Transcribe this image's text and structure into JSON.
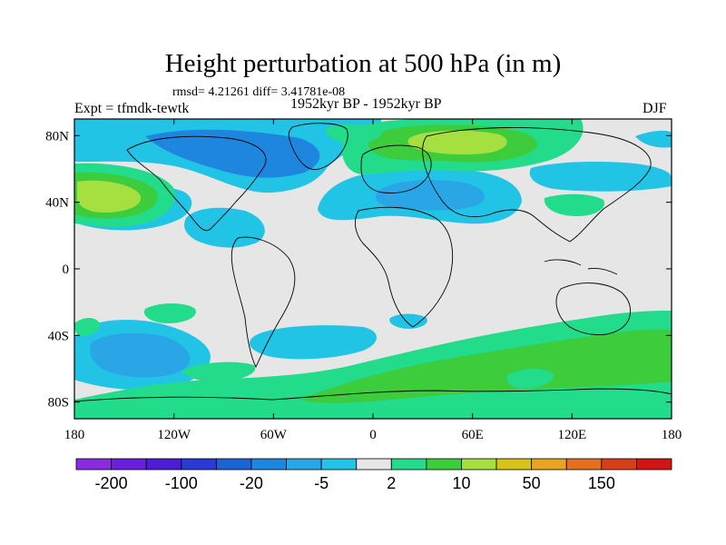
{
  "title": "Height perturbation at 500 hPa (in m)",
  "stats": "rmsd= 4.21261  diff= 3.41781e-08",
  "experiment": "Expt = tfmdk-tewtk",
  "period": "1952kyr BP - 1952kyr BP",
  "season": "DJF",
  "axes": {
    "lat_ticks": [
      "80N",
      "40N",
      "0",
      "40S",
      "80S"
    ],
    "lat_values": [
      80,
      40,
      0,
      -40,
      -80
    ],
    "lon_ticks": [
      "180",
      "120W",
      "60W",
      "0",
      "60E",
      "120E",
      "180"
    ],
    "lon_values": [
      -180,
      -120,
      -60,
      0,
      60,
      120,
      180
    ]
  },
  "colorbar": {
    "colors": [
      "#8a2be2",
      "#6a1ee0",
      "#4b1dd8",
      "#2a3ad8",
      "#1f62d8",
      "#1f86e0",
      "#2aa6e6",
      "#22c4e6",
      "#e6e6e6",
      "#22dc8c",
      "#3ccc3c",
      "#a6e040",
      "#d8c414",
      "#e6a61e",
      "#e2701e",
      "#d83e1a",
      "#d41414"
    ],
    "labels": [
      "-200",
      "-100",
      "-20",
      "-5",
      "2",
      "10",
      "50",
      "150"
    ]
  },
  "map_colors": {
    "neutral": "#e6e6e6",
    "blue_light": "#22c4e6",
    "blue_mid": "#2aa6e6",
    "blue_deep": "#1f86e0",
    "green_teal": "#22dc8c",
    "green": "#3ccc3c",
    "yellow_green": "#a6e040"
  }
}
